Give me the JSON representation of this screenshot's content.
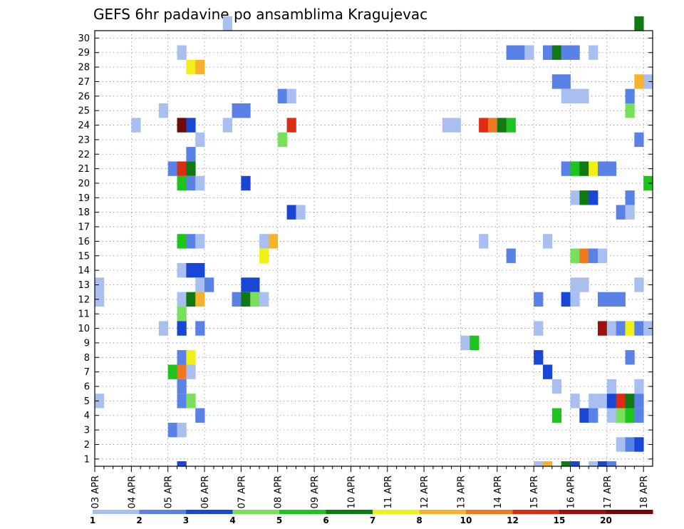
{
  "chart_data": {
    "type": "heatmap",
    "title": "GEFS 6hr padavine po ansamblima Kragujevac",
    "x_ticks": [
      "03 APR",
      "04 APR",
      "05 APR",
      "06 APR",
      "07 APR",
      "08 APR",
      "09 APR",
      "10 APR",
      "11 APR",
      "12 APR",
      "13 APR",
      "14 APR",
      "15 APR",
      "16 APR",
      "17 APR",
      "18 APR"
    ],
    "y_ticks": [
      "1",
      "2",
      "3",
      "4",
      "5",
      "6",
      "7",
      "8",
      "9",
      "10",
      "11",
      "12",
      "13",
      "14",
      "15",
      "16",
      "17",
      "18",
      "19",
      "20",
      "21",
      "22",
      "23",
      "24",
      "25",
      "26",
      "27",
      "28",
      "29",
      "30"
    ],
    "x_unit": "6-hour steps from 03 APR 00Z",
    "y_label": "",
    "grid": true,
    "legend_position": "bottom",
    "colorbar": {
      "labels": [
        "1",
        "2",
        "3",
        "4",
        "5",
        "6",
        "7",
        "8",
        "10",
        "12",
        "15",
        "20"
      ],
      "colors": [
        "#a8bff0",
        "#5a82e6",
        "#1a46d6",
        "#78e05a",
        "#1ec31e",
        "#0f7a14",
        "#f0f019",
        "#f5b22d",
        "#f0781e",
        "#dc2d14",
        "#a00f0f",
        "#6e0a0a"
      ]
    },
    "cells": [
      {
        "member": 30,
        "step": 14,
        "color": "#a8bff0"
      },
      {
        "member": 30,
        "step": 59,
        "color": "#0f7a14"
      },
      {
        "member": 28,
        "step": 9,
        "color": "#a8bff0"
      },
      {
        "member": 28,
        "step": 45,
        "color": "#5a82e6"
      },
      {
        "member": 28,
        "step": 46,
        "color": "#5a82e6"
      },
      {
        "member": 28,
        "step": 47,
        "color": "#a8bff0"
      },
      {
        "member": 28,
        "step": 49,
        "color": "#5a82e6"
      },
      {
        "member": 28,
        "step": 50,
        "color": "#0f7a14"
      },
      {
        "member": 28,
        "step": 51,
        "color": "#5a82e6"
      },
      {
        "member": 28,
        "step": 52,
        "color": "#5a82e6"
      },
      {
        "member": 28,
        "step": 54,
        "color": "#a8bff0"
      },
      {
        "member": 27,
        "step": 10,
        "color": "#f0f019"
      },
      {
        "member": 27,
        "step": 11,
        "color": "#f5b22d"
      },
      {
        "member": 26,
        "step": 50,
        "color": "#5a82e6"
      },
      {
        "member": 26,
        "step": 51,
        "color": "#5a82e6"
      },
      {
        "member": 26,
        "step": 59,
        "color": "#f5b22d"
      },
      {
        "member": 26,
        "step": 60,
        "color": "#a8bff0"
      },
      {
        "member": 25,
        "step": 20,
        "color": "#5a82e6"
      },
      {
        "member": 25,
        "step": 21,
        "color": "#a8bff0"
      },
      {
        "member": 25,
        "step": 51,
        "color": "#a8bff0"
      },
      {
        "member": 25,
        "step": 52,
        "color": "#a8bff0"
      },
      {
        "member": 25,
        "step": 53,
        "color": "#a8bff0"
      },
      {
        "member": 25,
        "step": 58,
        "color": "#5a82e6"
      },
      {
        "member": 24,
        "step": 7,
        "color": "#a8bff0"
      },
      {
        "member": 24,
        "step": 15,
        "color": "#5a82e6"
      },
      {
        "member": 24,
        "step": 16,
        "color": "#5a82e6"
      },
      {
        "member": 24,
        "step": 58,
        "color": "#78e05a"
      },
      {
        "member": 23,
        "step": 4,
        "color": "#a8bff0"
      },
      {
        "member": 23,
        "step": 9,
        "color": "#6e0a0a"
      },
      {
        "member": 23,
        "step": 10,
        "color": "#1a46d6"
      },
      {
        "member": 23,
        "step": 14,
        "color": "#a8bff0"
      },
      {
        "member": 23,
        "step": 21,
        "color": "#dc2d14"
      },
      {
        "member": 23,
        "step": 38,
        "color": "#a8bff0"
      },
      {
        "member": 23,
        "step": 39,
        "color": "#a8bff0"
      },
      {
        "member": 23,
        "step": 42,
        "color": "#dc2d14"
      },
      {
        "member": 23,
        "step": 43,
        "color": "#f0781e"
      },
      {
        "member": 23,
        "step": 44,
        "color": "#0f7a14"
      },
      {
        "member": 23,
        "step": 45,
        "color": "#1ec31e"
      },
      {
        "member": 22,
        "step": 11,
        "color": "#a8bff0"
      },
      {
        "member": 22,
        "step": 20,
        "color": "#78e05a"
      },
      {
        "member": 22,
        "step": 59,
        "color": "#5a82e6"
      },
      {
        "member": 21,
        "step": 10,
        "color": "#5a82e6"
      },
      {
        "member": 20,
        "step": 8,
        "color": "#5a82e6"
      },
      {
        "member": 20,
        "step": 9,
        "color": "#dc2d14"
      },
      {
        "member": 20,
        "step": 10,
        "color": "#0f7a14"
      },
      {
        "member": 20,
        "step": 51,
        "color": "#5a82e6"
      },
      {
        "member": 20,
        "step": 52,
        "color": "#1ec31e"
      },
      {
        "member": 20,
        "step": 53,
        "color": "#0f7a14"
      },
      {
        "member": 20,
        "step": 54,
        "color": "#f0f019"
      },
      {
        "member": 20,
        "step": 55,
        "color": "#5a82e6"
      },
      {
        "member": 20,
        "step": 56,
        "color": "#5a82e6"
      },
      {
        "member": 19,
        "step": 9,
        "color": "#1ec31e"
      },
      {
        "member": 19,
        "step": 10,
        "color": "#5a82e6"
      },
      {
        "member": 19,
        "step": 11,
        "color": "#a8bff0"
      },
      {
        "member": 19,
        "step": 16,
        "color": "#1a46d6"
      },
      {
        "member": 19,
        "step": 60,
        "color": "#1ec31e"
      },
      {
        "member": 18,
        "step": 52,
        "color": "#a8bff0"
      },
      {
        "member": 18,
        "step": 53,
        "color": "#0f7a14"
      },
      {
        "member": 18,
        "step": 54,
        "color": "#1a46d6"
      },
      {
        "member": 18,
        "step": 58,
        "color": "#5a82e6"
      },
      {
        "member": 17,
        "step": 21,
        "color": "#1a46d6"
      },
      {
        "member": 17,
        "step": 22,
        "color": "#a8bff0"
      },
      {
        "member": 17,
        "step": 57,
        "color": "#5a82e6"
      },
      {
        "member": 17,
        "step": 58,
        "color": "#a8bff0"
      },
      {
        "member": 15,
        "step": 9,
        "color": "#1ec31e"
      },
      {
        "member": 15,
        "step": 10,
        "color": "#5a82e6"
      },
      {
        "member": 15,
        "step": 11,
        "color": "#a8bff0"
      },
      {
        "member": 15,
        "step": 18,
        "color": "#a8bff0"
      },
      {
        "member": 15,
        "step": 19,
        "color": "#f5b22d"
      },
      {
        "member": 15,
        "step": 42,
        "color": "#a8bff0"
      },
      {
        "member": 15,
        "step": 49,
        "color": "#a8bff0"
      },
      {
        "member": 14,
        "step": 18,
        "color": "#f0f019"
      },
      {
        "member": 14,
        "step": 45,
        "color": "#5a82e6"
      },
      {
        "member": 14,
        "step": 52,
        "color": "#78e05a"
      },
      {
        "member": 14,
        "step": 53,
        "color": "#f0781e"
      },
      {
        "member": 14,
        "step": 54,
        "color": "#5a82e6"
      },
      {
        "member": 14,
        "step": 55,
        "color": "#a8bff0"
      },
      {
        "member": 13,
        "step": 9,
        "color": "#a8bff0"
      },
      {
        "member": 13,
        "step": 10,
        "color": "#1a46d6"
      },
      {
        "member": 13,
        "step": 11,
        "color": "#1a46d6"
      },
      {
        "member": 12,
        "step": 0,
        "color": "#a8bff0"
      },
      {
        "member": 12,
        "step": 11,
        "color": "#a8bff0"
      },
      {
        "member": 12,
        "step": 12,
        "color": "#5a82e6"
      },
      {
        "member": 12,
        "step": 16,
        "color": "#1a46d6"
      },
      {
        "member": 12,
        "step": 17,
        "color": "#1a46d6"
      },
      {
        "member": 12,
        "step": 52,
        "color": "#a8bff0"
      },
      {
        "member": 12,
        "step": 53,
        "color": "#a8bff0"
      },
      {
        "member": 12,
        "step": 59,
        "color": "#a8bff0"
      },
      {
        "member": 11,
        "step": 0,
        "color": "#a8bff0"
      },
      {
        "member": 11,
        "step": 9,
        "color": "#a8bff0"
      },
      {
        "member": 11,
        "step": 10,
        "color": "#0f7a14"
      },
      {
        "member": 11,
        "step": 11,
        "color": "#f5b22d"
      },
      {
        "member": 11,
        "step": 15,
        "color": "#5a82e6"
      },
      {
        "member": 11,
        "step": 16,
        "color": "#0f7a14"
      },
      {
        "member": 11,
        "step": 17,
        "color": "#78e05a"
      },
      {
        "member": 11,
        "step": 18,
        "color": "#a8bff0"
      },
      {
        "member": 11,
        "step": 48,
        "color": "#5a82e6"
      },
      {
        "member": 11,
        "step": 51,
        "color": "#1a46d6"
      },
      {
        "member": 11,
        "step": 52,
        "color": "#a8bff0"
      },
      {
        "member": 11,
        "step": 55,
        "color": "#5a82e6"
      },
      {
        "member": 11,
        "step": 56,
        "color": "#5a82e6"
      },
      {
        "member": 11,
        "step": 57,
        "color": "#5a82e6"
      },
      {
        "member": 10,
        "step": 9,
        "color": "#78e05a"
      },
      {
        "member": 9,
        "step": 7,
        "color": "#a8bff0"
      },
      {
        "member": 9,
        "step": 9,
        "color": "#1a46d6"
      },
      {
        "member": 9,
        "step": 11,
        "color": "#5a82e6"
      },
      {
        "member": 9,
        "step": 48,
        "color": "#a8bff0"
      },
      {
        "member": 9,
        "step": 55,
        "color": "#a00f0f"
      },
      {
        "member": 9,
        "step": 56,
        "color": "#a8bff0"
      },
      {
        "member": 9,
        "step": 57,
        "color": "#5a82e6"
      },
      {
        "member": 9,
        "step": 58,
        "color": "#f0f019"
      },
      {
        "member": 9,
        "step": 59,
        "color": "#5a82e6"
      },
      {
        "member": 9,
        "step": 60,
        "color": "#a8bff0"
      },
      {
        "member": 8,
        "step": 40,
        "color": "#a8bff0"
      },
      {
        "member": 8,
        "step": 41,
        "color": "#1ec31e"
      },
      {
        "member": 7,
        "step": 9,
        "color": "#5a82e6"
      },
      {
        "member": 7,
        "step": 10,
        "color": "#f0f019"
      },
      {
        "member": 7,
        "step": 48,
        "color": "#1a46d6"
      },
      {
        "member": 7,
        "step": 58,
        "color": "#5a82e6"
      },
      {
        "member": 6,
        "step": 8,
        "color": "#1ec31e"
      },
      {
        "member": 6,
        "step": 9,
        "color": "#f0781e"
      },
      {
        "member": 6,
        "step": 10,
        "color": "#a8bff0"
      },
      {
        "member": 6,
        "step": 49,
        "color": "#1a46d6"
      },
      {
        "member": 5,
        "step": 9,
        "color": "#5a82e6"
      },
      {
        "member": 5,
        "step": 50,
        "color": "#a8bff0"
      },
      {
        "member": 5,
        "step": 56,
        "color": "#a8bff0"
      },
      {
        "member": 5,
        "step": 59,
        "color": "#a8bff0"
      },
      {
        "member": 4,
        "step": 0,
        "color": "#a8bff0"
      },
      {
        "member": 4,
        "step": 9,
        "color": "#5a82e6"
      },
      {
        "member": 4,
        "step": 10,
        "color": "#78e05a"
      },
      {
        "member": 4,
        "step": 52,
        "color": "#a8bff0"
      },
      {
        "member": 4,
        "step": 54,
        "color": "#a8bff0"
      },
      {
        "member": 4,
        "step": 55,
        "color": "#a8bff0"
      },
      {
        "member": 4,
        "step": 56,
        "color": "#1a46d6"
      },
      {
        "member": 4,
        "step": 57,
        "color": "#dc2d14"
      },
      {
        "member": 4,
        "step": 58,
        "color": "#0f7a14"
      },
      {
        "member": 4,
        "step": 59,
        "color": "#5a82e6"
      },
      {
        "member": 3,
        "step": 11,
        "color": "#5a82e6"
      },
      {
        "member": 3,
        "step": 50,
        "color": "#1ec31e"
      },
      {
        "member": 3,
        "step": 53,
        "color": "#1a46d6"
      },
      {
        "member": 3,
        "step": 54,
        "color": "#5a82e6"
      },
      {
        "member": 3,
        "step": 56,
        "color": "#a8bff0"
      },
      {
        "member": 3,
        "step": 57,
        "color": "#78e05a"
      },
      {
        "member": 3,
        "step": 58,
        "color": "#1ec31e"
      },
      {
        "member": 3,
        "step": 59,
        "color": "#5a82e6"
      },
      {
        "member": 2,
        "step": 8,
        "color": "#5a82e6"
      },
      {
        "member": 2,
        "step": 9,
        "color": "#a8bff0"
      },
      {
        "member": 1,
        "step": 57,
        "color": "#a8bff0"
      },
      {
        "member": 1,
        "step": 58,
        "color": "#5a82e6"
      },
      {
        "member": 1,
        "step": 59,
        "color": "#1a46d6"
      },
      {
        "member": 0,
        "step": 9,
        "color": "#1a46d6"
      },
      {
        "member": 0,
        "step": 48,
        "color": "#a8bff0"
      },
      {
        "member": 0,
        "step": 49,
        "color": "#f5b22d"
      },
      {
        "member": 0,
        "step": 51,
        "color": "#0f7a14"
      },
      {
        "member": 0,
        "step": 52,
        "color": "#1a46d6"
      },
      {
        "member": 0,
        "step": 54,
        "color": "#a8bff0"
      },
      {
        "member": 0,
        "step": 55,
        "color": "#1a46d6"
      },
      {
        "member": 0,
        "step": 56,
        "color": "#5a82e6"
      }
    ]
  }
}
